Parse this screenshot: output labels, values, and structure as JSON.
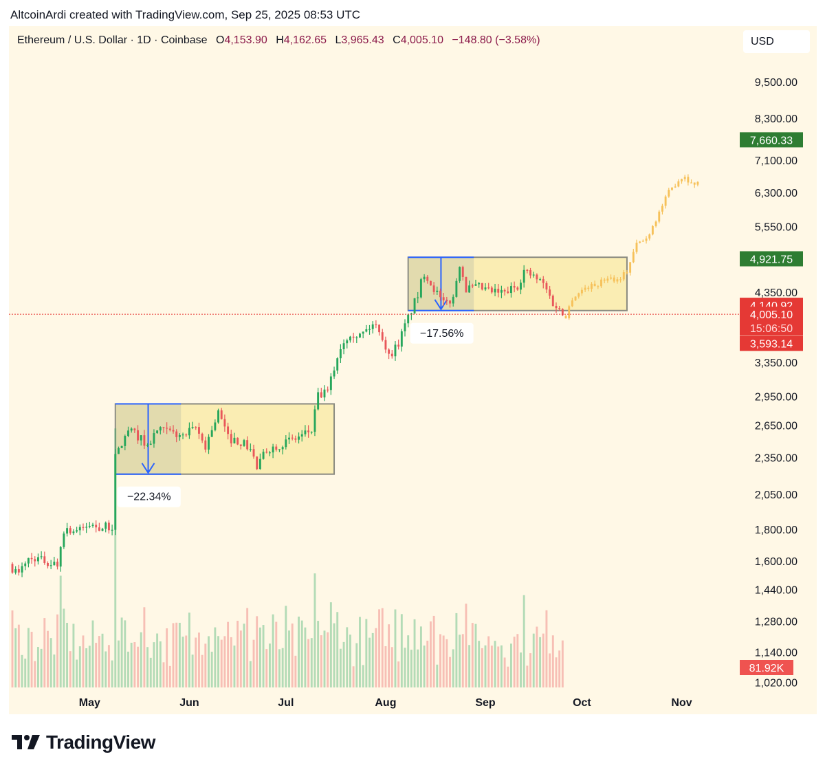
{
  "header": {
    "attribution": "AltcoinArdi created with TradingView.com, Sep 25, 2025 08:53 UTC"
  },
  "legend": {
    "symbol": "Ethereum / U.S. Dollar · 1D · Coinbase",
    "open_label": "O",
    "open": "4,153.90",
    "high_label": "H",
    "high": "4,162.65",
    "low_label": "L",
    "low": "3,965.43",
    "close_label": "C",
    "close": "4,005.10",
    "change": "−148.80 (−3.58%)"
  },
  "currency_button": "USD",
  "brand": {
    "name": "TradingView",
    "logo_icon": "tradingview-logo-icon"
  },
  "colors": {
    "background": "#fff8e6",
    "up": "#26a65b",
    "down": "#e8575a",
    "projection": "#f6c15a",
    "box_fill": "#f8e9a1",
    "box_stroke": "#8a8a80",
    "measure": "#2962ff",
    "price_line": "#e53935"
  },
  "chart_data": {
    "type": "candlestick",
    "symbol": "ETHUSD",
    "interval": "1D",
    "scale": "log",
    "ylim": [
      1000,
      10500
    ],
    "y_ticks": [
      "9,500.00",
      "8,300.00",
      "7,100.00",
      "6,300.00",
      "5,550.00",
      "4,350.00",
      "3,350.00",
      "2,950.00",
      "2,650.00",
      "2,350.00",
      "2,050.00",
      "1,800.00",
      "1,600.00",
      "1,440.00",
      "1,280.00",
      "1,140.00",
      "1,020.00"
    ],
    "x_ticks": [
      "May",
      "Jun",
      "Jul",
      "Aug",
      "Sep",
      "Oct",
      "Nov"
    ],
    "x_tick_dates": [
      "2025-05-01",
      "2025-06-01",
      "2025-07-01",
      "2025-08-01",
      "2025-09-01",
      "2025-10-01",
      "2025-11-01"
    ],
    "x_range": [
      "2025-04-07",
      "2025-11-12"
    ],
    "price_keypoints": [
      [
        "2025-04-07",
        1560
      ],
      [
        "2025-04-09",
        1520
      ],
      [
        "2025-04-11",
        1600
      ],
      [
        "2025-04-14",
        1620
      ],
      [
        "2025-04-18",
        1590
      ],
      [
        "2025-04-21",
        1580
      ],
      [
        "2025-04-23",
        1800
      ],
      [
        "2025-04-28",
        1790
      ],
      [
        "2025-05-01",
        1830
      ],
      [
        "2025-05-05",
        1810
      ],
      [
        "2025-05-08",
        1820
      ],
      [
        "2025-05-09",
        2350
      ],
      [
        "2025-05-13",
        2600
      ],
      [
        "2025-05-16",
        2550
      ],
      [
        "2025-05-19",
        2450
      ],
      [
        "2025-05-22",
        2600
      ],
      [
        "2025-05-26",
        2580
      ],
      [
        "2025-05-30",
        2540
      ],
      [
        "2025-06-03",
        2620
      ],
      [
        "2025-06-06",
        2450
      ],
      [
        "2025-06-10",
        2780
      ],
      [
        "2025-06-13",
        2530
      ],
      [
        "2025-06-17",
        2490
      ],
      [
        "2025-06-20",
        2430
      ],
      [
        "2025-06-22",
        2260
      ],
      [
        "2025-06-25",
        2420
      ],
      [
        "2025-06-30",
        2480
      ],
      [
        "2025-07-04",
        2520
      ],
      [
        "2025-07-09",
        2600
      ],
      [
        "2025-07-11",
        2950
      ],
      [
        "2025-07-14",
        3000
      ],
      [
        "2025-07-18",
        3550
      ],
      [
        "2025-07-21",
        3750
      ],
      [
        "2025-07-24",
        3700
      ],
      [
        "2025-07-28",
        3850
      ],
      [
        "2025-07-30",
        3800
      ],
      [
        "2025-08-02",
        3420
      ],
      [
        "2025-08-05",
        3600
      ],
      [
        "2025-08-08",
        3950
      ],
      [
        "2025-08-11",
        4300
      ],
      [
        "2025-08-13",
        4680
      ],
      [
        "2025-08-15",
        4500
      ],
      [
        "2025-08-19",
        4150
      ],
      [
        "2025-08-22",
        4250
      ],
      [
        "2025-08-24",
        4850
      ],
      [
        "2025-08-26",
        4400
      ],
      [
        "2025-08-30",
        4420
      ],
      [
        "2025-09-03",
        4350
      ],
      [
        "2025-09-07",
        4330
      ],
      [
        "2025-09-11",
        4460
      ],
      [
        "2025-09-13",
        4700
      ],
      [
        "2025-09-16",
        4600
      ],
      [
        "2025-09-19",
        4480
      ],
      [
        "2025-09-22",
        4180
      ],
      [
        "2025-09-25",
        4005.1
      ]
    ],
    "projection_keypoints": [
      [
        "2025-09-26",
        3980
      ],
      [
        "2025-09-28",
        4250
      ],
      [
        "2025-10-02",
        4420
      ],
      [
        "2025-10-06",
        4480
      ],
      [
        "2025-10-09",
        4600
      ],
      [
        "2025-10-12",
        4550
      ],
      [
        "2025-10-15",
        4700
      ],
      [
        "2025-10-18",
        5200
      ],
      [
        "2025-10-21",
        5300
      ],
      [
        "2025-10-24",
        5700
      ],
      [
        "2025-10-28",
        6300
      ],
      [
        "2025-10-31",
        6600
      ],
      [
        "2025-11-02",
        6700
      ],
      [
        "2025-11-04",
        6500
      ],
      [
        "2025-11-06",
        6550
      ]
    ],
    "volume_label": "81.92K",
    "ranges": [
      {
        "start": "2025-05-09",
        "end": "2025-07-16",
        "high": 2870,
        "low": 2210,
        "measure_pct": "−22.34%"
      },
      {
        "start": "2025-08-08",
        "end": "2025-10-15",
        "high": 4950,
        "low": 4060,
        "measure_pct": "−17.56%"
      }
    ],
    "price_labels": [
      {
        "value": "7,660.33",
        "price": 7660.33,
        "color": "#2e7d32"
      },
      {
        "value": "4,921.75",
        "price": 4921.75,
        "color": "#2e7d32"
      },
      {
        "value": "4,140.92",
        "price": 4140.92,
        "color": "#e53935"
      },
      {
        "value": "4,005.10",
        "price": 4005.1,
        "color": "#e53935",
        "countdown": "15:06:50"
      },
      {
        "value": "3,593.14",
        "price": 3593.14,
        "color": "#e53935"
      }
    ]
  }
}
